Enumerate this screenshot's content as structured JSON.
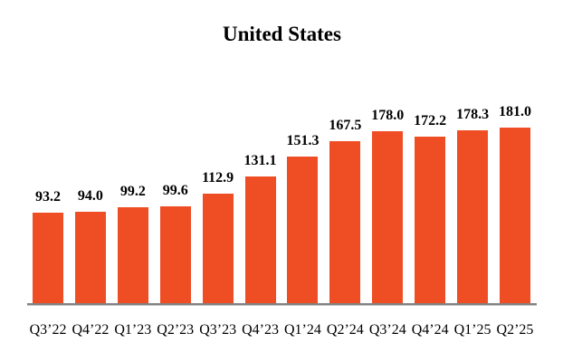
{
  "title": "United States",
  "chart_data": {
    "type": "bar",
    "title": "United States",
    "categories": [
      "Q3’22",
      "Q4’22",
      "Q1’23",
      "Q2’23",
      "Q3’23",
      "Q4’23",
      "Q1’24",
      "Q2’24",
      "Q3’24",
      "Q4’24",
      "Q1’25",
      "Q2’25"
    ],
    "values": [
      93.2,
      94.0,
      99.2,
      99.6,
      112.9,
      131.1,
      151.3,
      167.5,
      178.0,
      172.2,
      178.3,
      181.0
    ],
    "value_labels": [
      "93.2",
      "94.0",
      "99.2",
      "99.6",
      "112.9",
      "131.1",
      "151.3",
      "167.5",
      "178.0",
      "172.2",
      "178.3",
      "181.0"
    ],
    "xlabel": "",
    "ylabel": "",
    "ylim": [
      0,
      200
    ],
    "grid": false,
    "legend": "none",
    "bar_color": "#EF4E25",
    "axis_line_color": "#828282",
    "text_color": "#000000",
    "background_color": "#ffffff"
  }
}
